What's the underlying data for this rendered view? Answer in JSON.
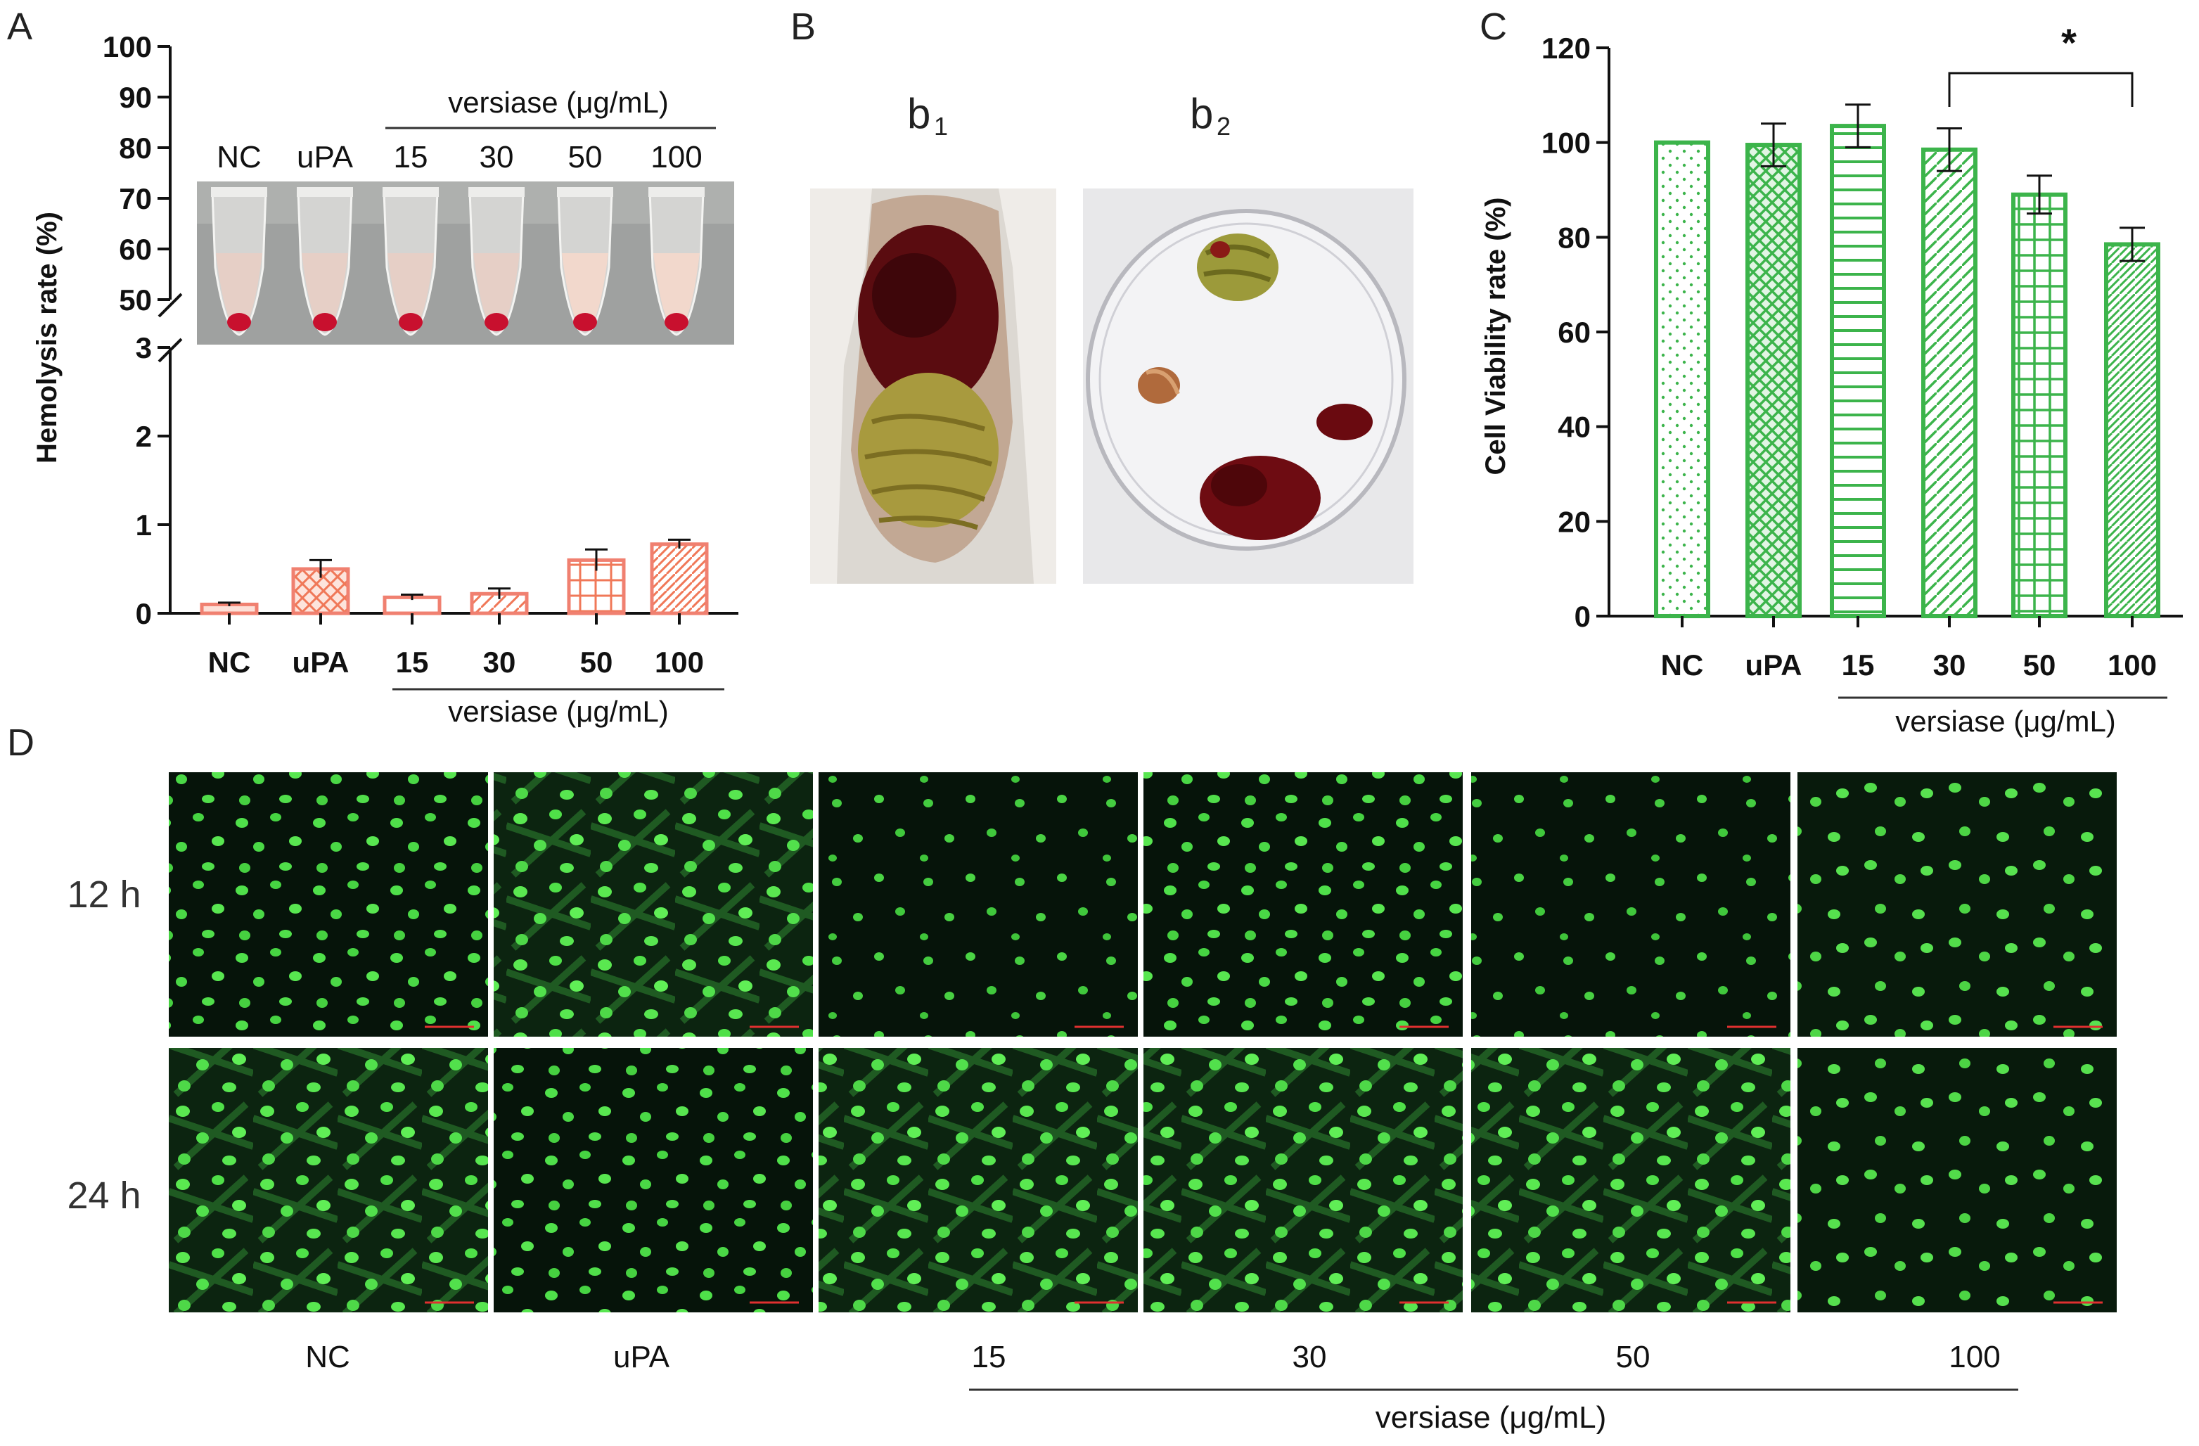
{
  "panels": {
    "a": "A",
    "b": "B",
    "c": "C",
    "d": "D"
  },
  "panel_b": {
    "b1_main": "b",
    "b1_sub": "1",
    "b2_main": "b",
    "b2_sub": "2"
  },
  "panel_d": {
    "rows": [
      "12 h",
      "24 h"
    ],
    "columns": [
      "NC",
      "uPA",
      "15",
      "30",
      "50",
      "100"
    ],
    "group_label": "versiase (μg/mL)"
  },
  "chart_data": [
    {
      "type": "bar",
      "title": "",
      "ylabel": "Hemolysis rate (%)",
      "xlabel": "versiase (μg/mL)",
      "categories": [
        "NC",
        "uPA",
        "15",
        "30",
        "50",
        "100"
      ],
      "values": [
        0.1,
        0.5,
        0.18,
        0.22,
        0.6,
        0.78
      ],
      "errors": [
        0.02,
        0.1,
        0.03,
        0.06,
        0.12,
        0.05
      ],
      "axis_break": true,
      "yticks_lower": [
        "0",
        "1",
        "2",
        "3"
      ],
      "yticks_upper": [
        "50",
        "60",
        "70",
        "80",
        "90",
        "100"
      ],
      "ylim_lower": [
        0,
        3
      ],
      "ylim_upper": [
        50,
        100
      ],
      "color": "#f08070",
      "inset": {
        "group_label": "versiase (μg/mL)",
        "tube_labels": [
          "NC",
          "uPA",
          "15",
          "30",
          "50",
          "100"
        ]
      }
    },
    {
      "type": "bar",
      "title": "",
      "ylabel": "Cell Viability rate (%)",
      "xlabel": "versiase (μg/mL)",
      "categories": [
        "NC",
        "uPA",
        "15",
        "30",
        "50",
        "100"
      ],
      "values": [
        100,
        99.5,
        103.5,
        98.5,
        89,
        78.5
      ],
      "errors": [
        0,
        4.5,
        4.5,
        4.5,
        4,
        3.5
      ],
      "ylim": [
        0,
        120
      ],
      "yticks": [
        "0",
        "20",
        "40",
        "60",
        "80",
        "100",
        "120"
      ],
      "significance": {
        "from": "30",
        "to": "100",
        "label": "*"
      },
      "color": "#3cb44b"
    }
  ]
}
